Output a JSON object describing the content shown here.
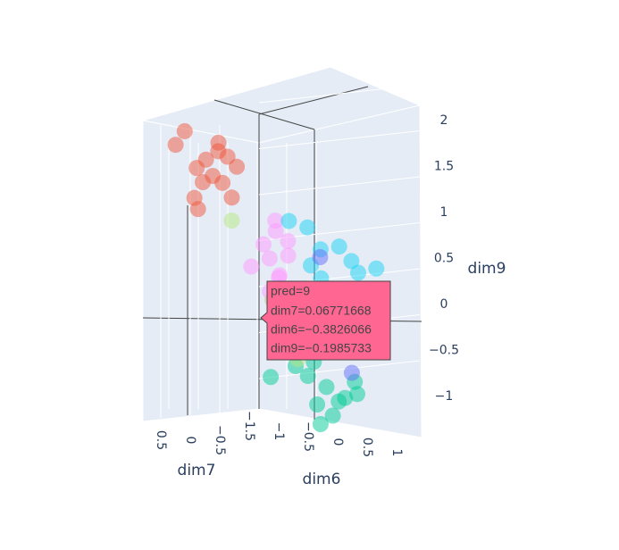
{
  "chart_data": {
    "type": "scatter3d",
    "x_title": "dim7",
    "y_title": "dim6",
    "z_title": "dim9",
    "xticks": [
      {
        "value": 0.5,
        "label": "0.5"
      },
      0,
      {
        "value": -0.5,
        "label": "−0.5"
      }
    ],
    "yticks": [
      {
        "value": -1.5,
        "label": "−1.5"
      },
      {
        "value": -1,
        "label": "−1"
      },
      {
        "value": -0.5,
        "label": "−0.5"
      },
      0,
      0.5,
      1
    ],
    "zticks": [
      2,
      1.5,
      1,
      0.5,
      0,
      {
        "value": -0.5,
        "label": "−0.5"
      },
      {
        "value": -1,
        "label": "−1"
      }
    ],
    "opacity": 0.5,
    "series": [
      {
        "color": "#EF553B",
        "x": [
          0,
          0.2,
          -0.1,
          0.1,
          0.3,
          -0.2,
          0,
          0.15,
          -0.05,
          0.25,
          0.1,
          -0.15,
          0.05,
          0.35
        ],
        "y": [
          -1.4,
          -1.55,
          -1.3,
          -1.2,
          -1.6,
          -1.1,
          -1.45,
          -1.0,
          -1.25,
          -1.35,
          -0.9,
          -1.2,
          -1.5,
          -1.2
        ],
        "z": [
          1.45,
          1.75,
          1.55,
          1.3,
          1.6,
          1.4,
          1.2,
          1.25,
          1.65,
          1.05,
          1.1,
          1.5,
          1.35,
          0.95
        ]
      },
      {
        "color": "#FF97FF",
        "x": [
          0,
          0.1,
          -0.1,
          0.05,
          0.2,
          -0.05,
          0,
          0.1,
          -0.1,
          0.15,
          0,
          0.05
        ],
        "y": [
          -0.3,
          -0.4,
          -0.2,
          -0.35,
          -0.5,
          -0.15,
          -0.25,
          -0.3,
          -0.4,
          -0.1,
          -0.35,
          -0.2
        ],
        "z": [
          0.8,
          0.65,
          0.7,
          0.5,
          0.4,
          0.55,
          0.3,
          0.15,
          0.9,
          0.35,
          0.05,
          0.2
        ]
      },
      {
        "color": "#19D3F3",
        "x": [
          0,
          0.1,
          -0.1,
          0,
          0.2,
          -0.2,
          0.05,
          -0.05,
          0.1,
          0,
          -0.1,
          0.15
        ],
        "y": [
          0.2,
          0.5,
          0.8,
          1.0,
          0.6,
          1.1,
          0.3,
          0.9,
          0.0,
          0.7,
          0.4,
          1.2
        ],
        "z": [
          0.9,
          0.7,
          0.6,
          0.5,
          0.4,
          0.55,
          0.5,
          0.3,
          0.95,
          0.75,
          0.2,
          0.35
        ]
      },
      {
        "color": "#00CC96",
        "x": [
          0,
          0.1,
          -0.1,
          0,
          0.2,
          -0.2,
          0.05,
          -0.05,
          0.1,
          0,
          -0.1,
          0.3
        ],
        "y": [
          0.5,
          0.3,
          0.7,
          0.6,
          0.2,
          0.8,
          0.4,
          0.9,
          0.5,
          0.3,
          0.6,
          -0.1
        ],
        "z": [
          -0.8,
          -0.7,
          -0.9,
          -1.1,
          -0.6,
          -0.85,
          -1.0,
          -0.7,
          -1.2,
          -0.55,
          -0.95,
          -0.75
        ]
      },
      {
        "color": "#636EFA",
        "x": [
          0,
          0
        ],
        "y": [
          0.9,
          0.4
        ],
        "z": [
          -0.6,
          0.6
        ]
      },
      {
        "color": "#B6E880",
        "x": [
          0,
          0.1,
          0
        ],
        "y": [
          0.05,
          -0.9,
          -0.35
        ],
        "z": [
          -0.55,
          0.85,
          0.05
        ]
      }
    ],
    "tooltip": {
      "color": "#FF6692",
      "lines": [
        "pred=9",
        "dim7=0.06771668",
        "dim6=−0.3826066",
        "dim9=−0.1985733"
      ]
    }
  }
}
